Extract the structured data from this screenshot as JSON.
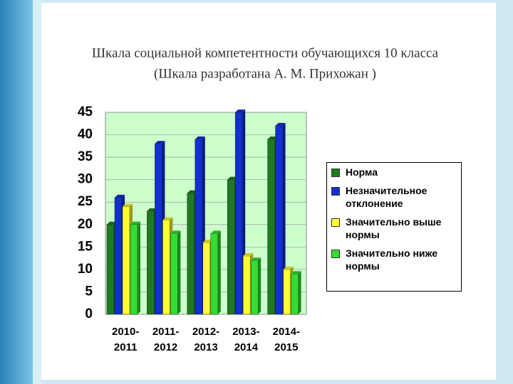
{
  "chart_data": {
    "type": "bar",
    "title": "Шкала социальной компетентности обучающихся 10 класса",
    "subtitle": "(Шкала разработана А. М. Прихожан )",
    "categories": [
      [
        "2010-",
        "2011"
      ],
      [
        "2011-",
        "2012"
      ],
      [
        "2012-",
        "2013"
      ],
      [
        "2013-",
        "2014"
      ],
      [
        "2014-",
        "2015"
      ]
    ],
    "series": [
      {
        "name": "Норма",
        "color": "#1f7a1f",
        "values": [
          20,
          23,
          27,
          30,
          39
        ]
      },
      {
        "name": "Незначительное отклонение",
        "color": "#1030d0",
        "values": [
          26,
          38,
          39,
          45,
          42
        ]
      },
      {
        "name": "Значительно выше нормы",
        "color": "#ffff33",
        "values": [
          24,
          21,
          16,
          13,
          10
        ]
      },
      {
        "name": "Значительно ниже нормы",
        "color": "#33dd33",
        "values": [
          20,
          18,
          18,
          12,
          9
        ]
      }
    ],
    "ylim": [
      0,
      45
    ],
    "yticks": [
      0,
      5,
      10,
      15,
      20,
      25,
      30,
      35,
      40,
      45
    ],
    "grid": true,
    "legend": "right"
  }
}
